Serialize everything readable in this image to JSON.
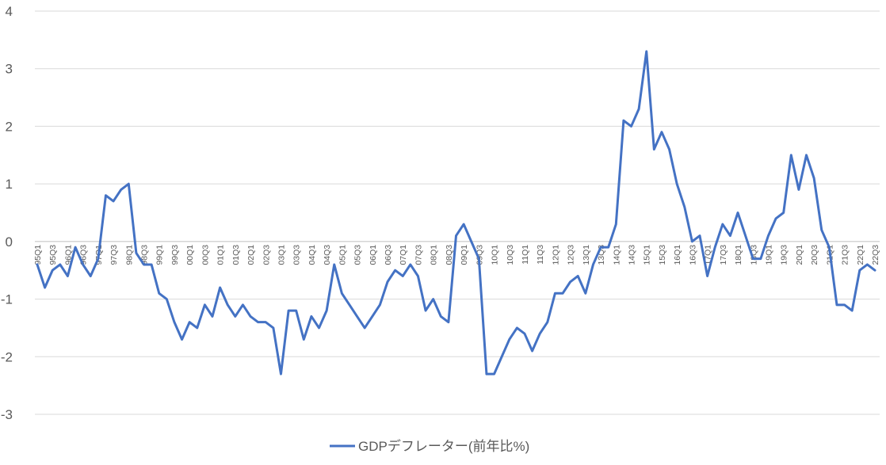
{
  "chart_data": {
    "type": "line",
    "legend_position": "bottom",
    "grid": true,
    "ylim": [
      -3,
      4
    ],
    "yticks": [
      4,
      3,
      2,
      1,
      0,
      -1,
      -2,
      -3
    ],
    "xtick_labels": [
      "95Q1",
      "95Q3",
      "96Q1",
      "96Q3",
      "97Q1",
      "97Q3",
      "98Q1",
      "98Q3",
      "99Q1",
      "99Q3",
      "00Q1",
      "00Q3",
      "01Q1",
      "01Q3",
      "02Q1",
      "02Q3",
      "03Q1",
      "03Q3",
      "04Q1",
      "04Q3",
      "05Q1",
      "05Q3",
      "06Q1",
      "06Q3",
      "07Q1",
      "07Q3",
      "08Q1",
      "08Q3",
      "09Q1",
      "09Q3",
      "10Q1",
      "10Q3",
      "11Q1",
      "11Q3",
      "12Q1",
      "12Q3",
      "13Q1",
      "13Q3",
      "14Q1",
      "14Q3",
      "15Q1",
      "15Q3",
      "16Q1",
      "16Q3",
      "17Q1",
      "17Q3",
      "18Q1",
      "18Q3",
      "19Q1",
      "19Q3",
      "20Q1",
      "20Q3",
      "21Q1",
      "21Q3",
      "22Q1",
      "22Q3"
    ],
    "series": [
      {
        "name": "GDPデフレーター(前年比%)",
        "color": "#4472c4",
        "values": [
          -0.4,
          -0.8,
          -0.5,
          -0.4,
          -0.6,
          -0.1,
          -0.4,
          -0.6,
          -0.3,
          0.8,
          0.7,
          0.9,
          1.0,
          -0.2,
          -0.4,
          -0.4,
          -0.9,
          -1.0,
          -1.4,
          -1.7,
          -1.4,
          -1.5,
          -1.1,
          -1.3,
          -0.8,
          -1.1,
          -1.3,
          -1.1,
          -1.3,
          -1.4,
          -1.4,
          -1.5,
          -2.3,
          -1.2,
          -1.2,
          -1.7,
          -1.3,
          -1.5,
          -1.2,
          -0.4,
          -0.9,
          -1.1,
          -1.3,
          -1.5,
          -1.3,
          -1.1,
          -0.7,
          -0.5,
          -0.6,
          -0.4,
          -0.6,
          -1.2,
          -1.0,
          -1.3,
          -1.4,
          0.1,
          0.3,
          0.0,
          -0.3,
          -2.3,
          -2.3,
          -2.0,
          -1.7,
          -1.5,
          -1.6,
          -1.9,
          -1.6,
          -1.4,
          -0.9,
          -0.9,
          -0.7,
          -0.6,
          -0.9,
          -0.4,
          -0.1,
          -0.1,
          0.3,
          2.1,
          2.0,
          2.3,
          3.3,
          1.6,
          1.9,
          1.6,
          1.0,
          0.6,
          0.0,
          0.1,
          -0.6,
          -0.1,
          0.3,
          0.1,
          0.5,
          0.1,
          -0.3,
          -0.3,
          0.1,
          0.4,
          0.5,
          1.5,
          0.9,
          1.5,
          1.1,
          0.2,
          -0.1,
          -1.1,
          -1.1,
          -1.2,
          -0.5,
          -0.4,
          -0.5
        ]
      }
    ]
  }
}
